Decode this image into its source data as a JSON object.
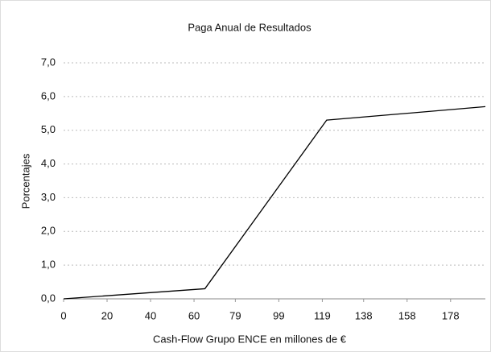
{
  "chart_data": {
    "type": "line",
    "title": "Paga Anual de Resultados",
    "x_label": "Cash-Flow Grupo ENCE en millones de €",
    "y_label": "Porcentajes",
    "x": [
      0,
      65,
      121,
      194
    ],
    "series": [
      {
        "name": "Paga",
        "color": "#000000",
        "values": [
          0,
          0.3,
          5.3,
          5.7
        ]
      }
    ],
    "xlim": [
      0,
      194
    ],
    "xticks": [
      0,
      20,
      40,
      60,
      79,
      99,
      119,
      138,
      158,
      178
    ],
    "ylim": [
      0,
      7
    ],
    "yticks": [
      {
        "value": 0,
        "label": "0,0"
      },
      {
        "value": 1,
        "label": "1,0"
      },
      {
        "value": 2,
        "label": "2,0"
      },
      {
        "value": 3,
        "label": "3,0"
      },
      {
        "value": 4,
        "label": "4,0"
      },
      {
        "value": 5,
        "label": "5,0"
      },
      {
        "value": 6,
        "label": "6,0"
      },
      {
        "value": 7,
        "label": "7,0"
      }
    ],
    "grid": true
  }
}
